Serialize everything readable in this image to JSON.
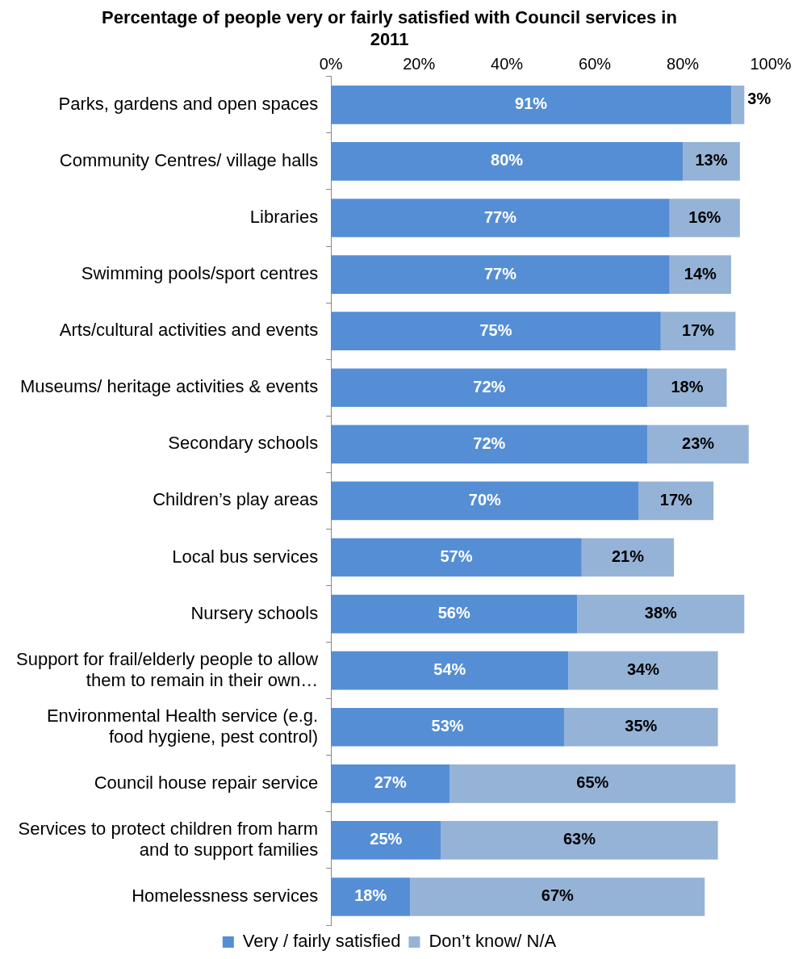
{
  "chart_data": {
    "type": "bar",
    "orientation": "horizontal",
    "stacked": true,
    "title": "Percentage of people very or fairly satisfied with Council services in 2011",
    "categories": [
      "Parks, gardens and open spaces",
      "Community Centres/ village halls",
      "Libraries",
      "Swimming pools/sport centres",
      "Arts/cultural activities and events",
      "Museums/ heritage activities & events",
      "Secondary schools",
      "Children’s play areas",
      "Local bus services",
      "Nursery schools",
      "Support for frail/elderly people to allow them to remain in their own…",
      "Environmental Health service (e.g. food hygiene, pest control)",
      "Council house repair service",
      "Services to protect children from harm and to support families",
      "Homelessness services"
    ],
    "series": [
      {
        "name": "Very / fairly satisfied",
        "color": "#558ed5",
        "values": [
          91,
          80,
          77,
          77,
          75,
          72,
          72,
          70,
          57,
          56,
          54,
          53,
          27,
          25,
          18
        ],
        "value_labels": [
          "91%",
          "80%",
          "77%",
          "77%",
          "75%",
          "72%",
          "72%",
          "70%",
          "57%",
          "56%",
          "54%",
          "53%",
          "27%",
          "25%",
          "18%"
        ]
      },
      {
        "name": "Don’t know/ N/A",
        "color": "#95b3d7",
        "values": [
          3,
          13,
          16,
          14,
          17,
          18,
          23,
          17,
          21,
          38,
          34,
          35,
          65,
          63,
          67
        ],
        "value_labels": [
          "3%",
          "13%",
          "16%",
          "14%",
          "17%",
          "18%",
          "23%",
          "17%",
          "21%",
          "38%",
          "34%",
          "35%",
          "65%",
          "63%",
          "67%"
        ]
      }
    ],
    "xlim": [
      0,
      100
    ],
    "xticks": [
      {
        "value": 0,
        "label": "0%"
      },
      {
        "value": 20,
        "label": "20%"
      },
      {
        "value": 40,
        "label": "40%"
      },
      {
        "value": 60,
        "label": "60%"
      },
      {
        "value": 80,
        "label": "80%"
      },
      {
        "value": 100,
        "label": "100%"
      }
    ],
    "grid": false,
    "legend": "bottom"
  }
}
